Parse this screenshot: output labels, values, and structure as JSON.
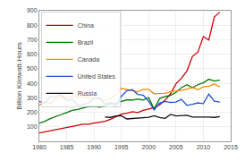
{
  "chart_data": {
    "type": "line",
    "ylabel": "Billion Kilowatt-Hours",
    "x": [
      1980,
      1981,
      1982,
      1983,
      1984,
      1985,
      1986,
      1987,
      1988,
      1989,
      1990,
      1991,
      1992,
      1993,
      1994,
      1995,
      1996,
      1997,
      1998,
      1999,
      2000,
      2001,
      2002,
      2003,
      2004,
      2005,
      2006,
      2007,
      2008,
      2009,
      2010,
      2011,
      2012,
      2013
    ],
    "series": [
      {
        "name": "China",
        "color": "#cc0000",
        "values": [
          58,
          65,
          72,
          78,
          86,
          92,
          100,
          110,
          118,
          118,
          126,
          130,
          138,
          152,
          168,
          187,
          193,
          204,
          198,
          213,
          222,
          232,
          252,
          283,
          328,
          397,
          435,
          485,
          585,
          615,
          722,
          698,
          856,
          890
        ]
      },
      {
        "name": "Brazil",
        "color": "#007700",
        "values": [
          126,
          138,
          156,
          172,
          185,
          198,
          213,
          220,
          230,
          240,
          243,
          235,
          245,
          260,
          260,
          275,
          285,
          285,
          290,
          285,
          302,
          222,
          295,
          309,
          317,
          337,
          370,
          390,
          370,
          390,
          403,
          428,
          415,
          421
        ]
      },
      {
        "name": "Canada",
        "color": "#ff8800",
        "values": [
          250,
          270,
          260,
          295,
          305,
          305,
          310,
          305,
          305,
          300,
          295,
          300,
          278,
          296,
          320,
          365,
          358,
          353,
          342,
          358,
          358,
          328,
          330,
          330,
          343,
          345,
          350,
          360,
          370,
          355,
          375,
          380,
          395,
          375
        ]
      },
      {
        "name": "United States",
        "color": "#2255cc",
        "values": [
          276,
          261,
          309,
          310,
          321,
          281,
          291,
          250,
          252,
          265,
          295,
          296,
          256,
          269,
          243,
          310,
          349,
          356,
          323,
          319,
          276,
          216,
          264,
          275,
          268,
          270,
          289,
          248,
          255,
          265,
          260,
          325,
          276,
          270
        ]
      },
      {
        "name": "Russia",
        "color": "#111111",
        "values": [
          null,
          null,
          null,
          null,
          null,
          null,
          null,
          null,
          null,
          null,
          null,
          null,
          167,
          165,
          175,
          176,
          154,
          157,
          159,
          160,
          165,
          176,
          164,
          158,
          185,
          175,
          175,
          179,
          167,
          168,
          165,
          167,
          165,
          170
        ]
      }
    ],
    "xlim": [
      1980,
      2015
    ],
    "xticks": [
      1980,
      1985,
      1990,
      1995,
      2000,
      2005,
      2010,
      2015
    ],
    "ylim": [
      0,
      900
    ],
    "yticks": [
      100,
      200,
      300,
      400,
      500,
      600,
      700,
      800,
      900
    ],
    "grid": true,
    "legend": "upper left"
  }
}
